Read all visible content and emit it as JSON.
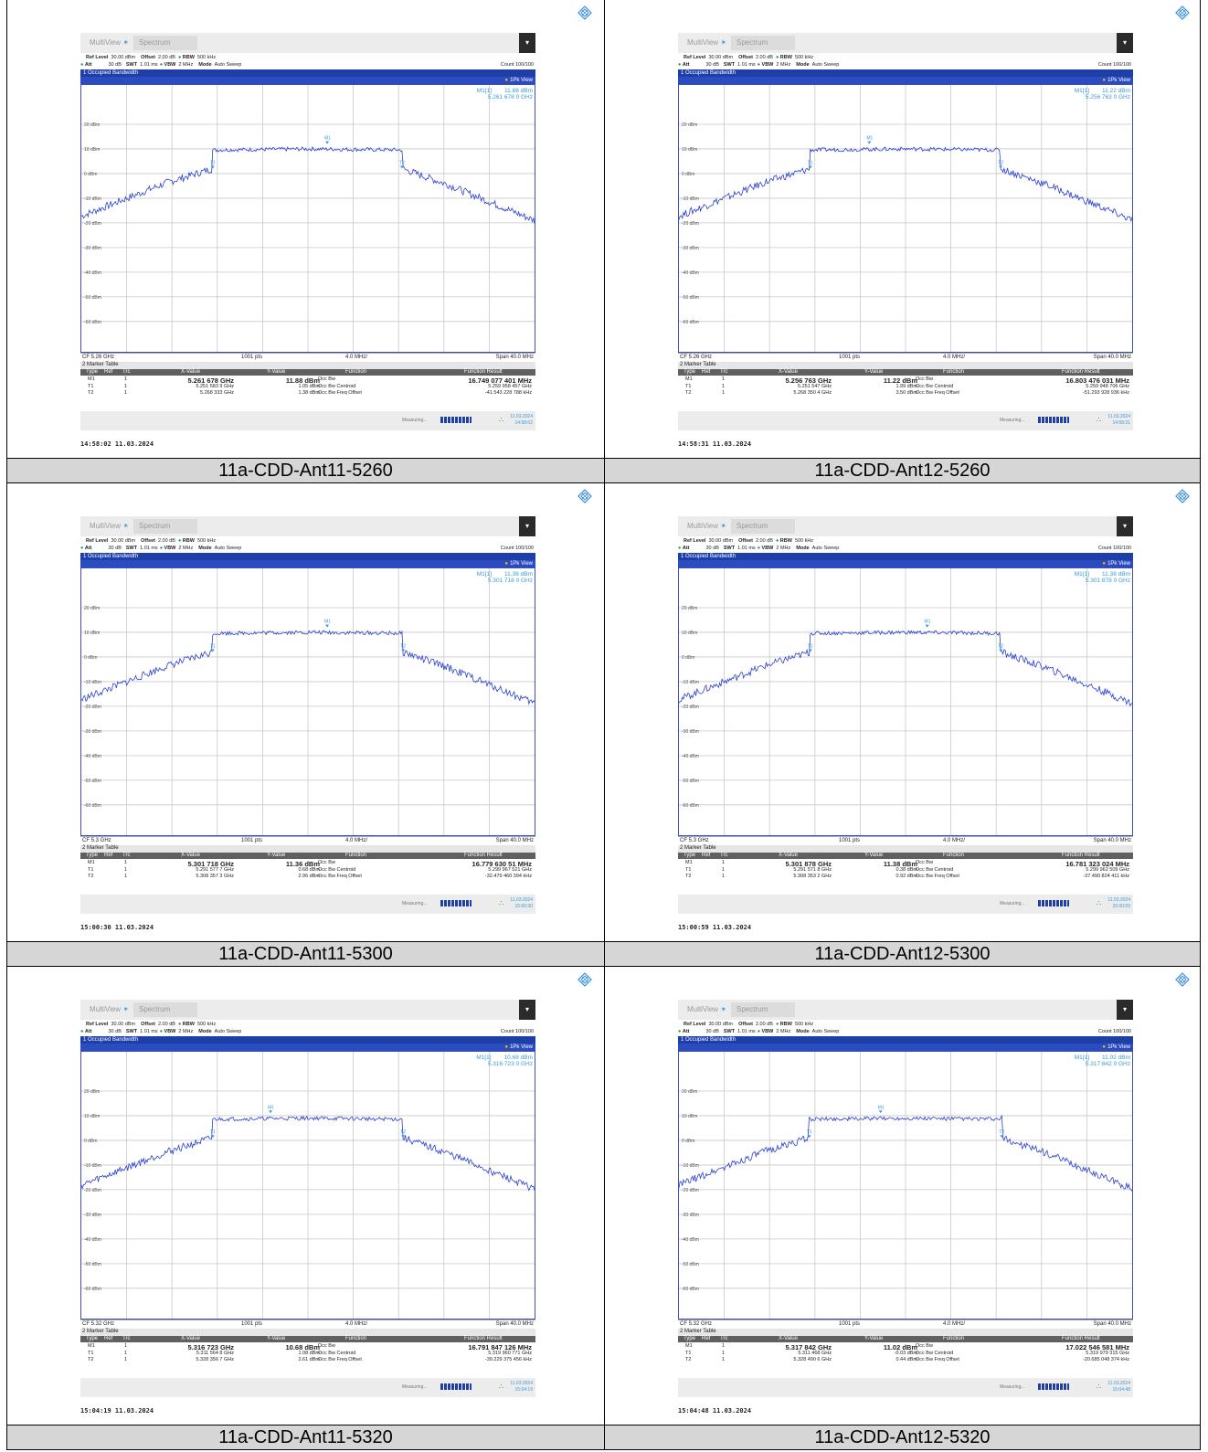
{
  "common": {
    "tab_multiview": "MultiView",
    "tab_spectrum": "Spectrum",
    "ref_level_label": "Ref Level",
    "ref_level_value": "30.00 dBm",
    "offset_label": "Offset",
    "offset_value": "2.00 dB",
    "rbw_label": "RBW",
    "rbw_value": "500 kHz",
    "att_label": "Att",
    "att_value": "30 dB",
    "swt_label": "SWT",
    "swt_value": "1.01 ms",
    "vbw_label": "VBW",
    "vbw_value": "2 MHz",
    "mode_label": "Mode",
    "mode_value": "Auto Sweep",
    "count": "Count 100/100",
    "window_title": "1 Occupied Bandwidth",
    "view": "1Pk View",
    "pts": "1001 pts",
    "div": "4.0 MHz/",
    "span": "Span 40.0 MHz",
    "table_title": "2 Marker Table",
    "col_type": "Type",
    "col_ref": "Ref",
    "col_trc": "Trc",
    "col_x": "X-Value",
    "col_y": "Y-Value",
    "col_func": "Function",
    "col_result": "Function Result",
    "func_occ_bw": "Occ Bw",
    "func_centroid": "Occ Bw Centroid",
    "func_offset": "Occ Bw Freq Offset",
    "measuring": "Measuring...",
    "y_ticks": [
      "20 dBm",
      "10 dBm",
      "0 dBm",
      "-10 dBm",
      "-20 dBm",
      "-30 dBm",
      "-40 dBm",
      "-50 dBm",
      "-60 dBm"
    ],
    "marker_trc": "1",
    "m1_label": "M1",
    "t1_label": "T1",
    "t2_label": "T2",
    "m1_box_label": "M1[1]"
  },
  "chart_data": [
    {
      "type": "line",
      "caption": "11a-CDD-Ant11-5260",
      "cf": "CF 5.26 GHz",
      "center_ghz": 5.26,
      "m1": {
        "x": "5.261 678 GHz",
        "y": "11.88 dBm",
        "box_y": "11.88 dBm",
        "box_x": "5.261 678 0 GHz",
        "result": "16.749 077 401 MHz"
      },
      "t1": {
        "x": "5.251 583 9 GHz",
        "y": "1.05 dBm",
        "result": "5.259 958 457 GHz"
      },
      "t2": {
        "x": "5.268 333 GHz",
        "y": "1.38 dBm",
        "result": "-41.543 228 788 kHz"
      },
      "stamp": "14:58:02  11.03.2024",
      "date": "11.03.2024",
      "time": "14:58:02",
      "ylim": [
        -70,
        30
      ],
      "band_left_mhz": -8.4,
      "band_right_mhz": 8.3,
      "peak_dbm": 10,
      "m1_mhz": 1.7
    },
    {
      "type": "line",
      "caption": "11a-CDD-Ant12-5260",
      "cf": "CF 5.26 GHz",
      "center_ghz": 5.26,
      "m1": {
        "x": "5.256 763 GHz",
        "y": "11.22 dBm",
        "box_y": "11.22 dBm",
        "box_x": "5.256 763 0 GHz",
        "result": "16.803 476 031 MHz"
      },
      "t1": {
        "x": "5.251 547 GHz",
        "y": "1.99 dBm",
        "result": "5.259 948 706 GHz"
      },
      "t2": {
        "x": "5.268 350 4 GHz",
        "y": "3.50 dBm",
        "result": "-51.293 928 936 kHz"
      },
      "stamp": "14:58:31  11.03.2024",
      "date": "11.03.2024",
      "time": "14:58:31",
      "ylim": [
        -70,
        30
      ],
      "band_left_mhz": -8.4,
      "band_right_mhz": 8.4,
      "peak_dbm": 10,
      "m1_mhz": -3.2
    },
    {
      "type": "line",
      "caption": "11a-CDD-Ant11-5300",
      "cf": "CF 5.3 GHz",
      "center_ghz": 5.3,
      "m1": {
        "x": "5.301 718 GHz",
        "y": "11.36 dBm",
        "box_y": "11.36 dBm",
        "box_x": "5.301 718 0 GHz",
        "result": "16.779 630 51 MHz"
      },
      "t1": {
        "x": "5.291 577 7 GHz",
        "y": "0.68 dBm",
        "result": "5.299 967 521 GHz"
      },
      "t2": {
        "x": "5.308 357 3 GHz",
        "y": "2.96 dBm",
        "result": "-32.479 460 394 kHz"
      },
      "stamp": "15:00:30  11.03.2024",
      "date": "11.03.2024",
      "time": "15:00:30",
      "ylim": [
        -70,
        30
      ],
      "band_left_mhz": -8.4,
      "band_right_mhz": 8.4,
      "peak_dbm": 10,
      "m1_mhz": 1.7
    },
    {
      "type": "line",
      "caption": "11a-CDD-Ant12-5300",
      "cf": "CF 5.3 GHz",
      "center_ghz": 5.3,
      "m1": {
        "x": "5.301 878 GHz",
        "y": "11.38 dBm",
        "box_y": "11.38 dBm",
        "box_x": "5.301 878 0 GHz",
        "result": "16.781 323 024 MHz"
      },
      "t1": {
        "x": "5.291 571 8 GHz",
        "y": "0.38 dBm",
        "result": "5.299 962 509 GHz"
      },
      "t2": {
        "x": "5.308 353 2 GHz",
        "y": "0.92 dBm",
        "result": "-37.490 824 411 kHz"
      },
      "stamp": "15:00:59  11.03.2024",
      "date": "11.03.2024",
      "time": "15:00:59",
      "ylim": [
        -70,
        30
      ],
      "band_left_mhz": -8.4,
      "band_right_mhz": 8.4,
      "peak_dbm": 10,
      "m1_mhz": 1.9
    },
    {
      "type": "line",
      "caption": "11a-CDD-Ant11-5320",
      "cf": "CF 5.32 GHz",
      "center_ghz": 5.32,
      "m1": {
        "x": "5.316 723 GHz",
        "y": "10.68 dBm",
        "box_y": "10.68 dBm",
        "box_x": "5.316 723 0 GHz",
        "result": "16.791 847 126 MHz"
      },
      "t1": {
        "x": "5.311 564 8 GHz",
        "y": "1.08 dBm",
        "result": "5.319 960 771 GHz"
      },
      "t2": {
        "x": "5.328 356 7 GHz",
        "y": "2.61 dBm",
        "result": "-39.229 375 456 kHz"
      },
      "stamp": "15:04:19  11.03.2024",
      "date": "11.03.2024",
      "time": "15:04:19",
      "ylim": [
        -70,
        30
      ],
      "band_left_mhz": -8.4,
      "band_right_mhz": 8.4,
      "peak_dbm": 9,
      "m1_mhz": -3.3
    },
    {
      "type": "line",
      "caption": "11a-CDD-Ant12-5320",
      "cf": "CF 5.32 GHz",
      "center_ghz": 5.32,
      "m1": {
        "x": "5.317 842 GHz",
        "y": "11.02 dBm",
        "box_y": "11.02 dBm",
        "box_x": "5.317 842 0 GHz",
        "result": "17.022 546 581 MHz"
      },
      "t1": {
        "x": "5.311 468 GHz",
        "y": "-0.03 dBm",
        "result": "5.319 979 315 GHz"
      },
      "t2": {
        "x": "5.328 490 6 GHz",
        "y": "0.44 dBm",
        "result": "-20.685 048 374 kHz"
      },
      "stamp": "15:04:48  11.03.2024",
      "date": "11.03.2024",
      "time": "15:04:48",
      "ylim": [
        -70,
        30
      ],
      "band_left_mhz": -8.5,
      "band_right_mhz": 8.5,
      "peak_dbm": 9,
      "m1_mhz": -2.2
    }
  ]
}
